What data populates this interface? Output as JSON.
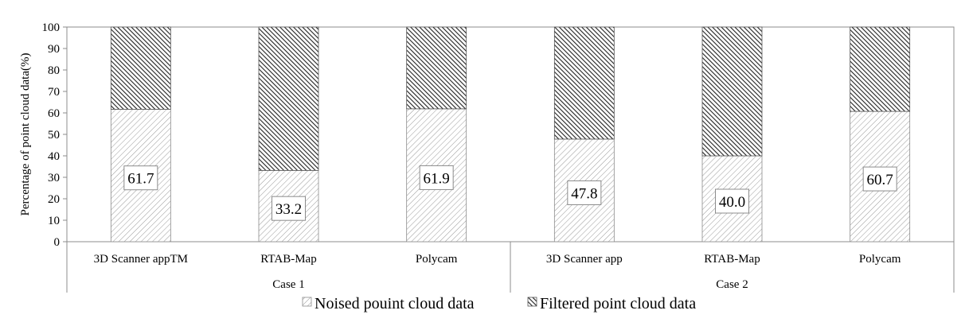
{
  "chart_data": {
    "type": "bar",
    "stacked": true,
    "ylabel": "Percentage of point cloud data(%)",
    "ylim": [
      0,
      100
    ],
    "yticks": [
      0,
      10,
      20,
      30,
      40,
      50,
      60,
      70,
      80,
      90,
      100
    ],
    "grid": false,
    "legend_position": "bottom",
    "groups": [
      {
        "label": "Case 1",
        "categories": [
          "3D Scanner appTM",
          "RTAB-Map",
          "Polycam"
        ]
      },
      {
        "label": "Case 2",
        "categories": [
          "3D Scanner app",
          "RTAB-Map",
          "Polycam"
        ]
      }
    ],
    "categories": [
      "3D Scanner appTM",
      "RTAB-Map",
      "Polycam",
      "3D Scanner app",
      "RTAB-Map",
      "Polycam"
    ],
    "series": [
      {
        "name": "Noised pouint cloud data",
        "values": [
          61.7,
          33.2,
          61.9,
          47.8,
          40.0,
          60.7
        ],
        "labels": [
          "61.7",
          "33.2",
          "61.9",
          "47.8",
          "40.0",
          "60.7"
        ],
        "pattern": "light-diagonal-hatch"
      },
      {
        "name": "Filtered point cloud data",
        "values": [
          38.3,
          66.8,
          38.1,
          52.2,
          60.0,
          39.3
        ],
        "pattern": "dark-diagonal-hatch"
      }
    ]
  }
}
